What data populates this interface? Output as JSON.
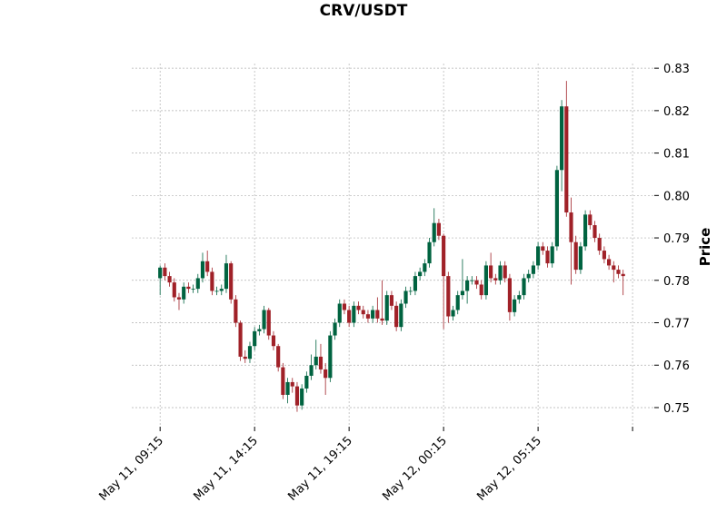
{
  "chart_data": {
    "type": "candlestick",
    "title": "CRV/USDT",
    "y_label": "Price",
    "up_color": "#006340",
    "down_color": "#a02128",
    "grid": true,
    "xlim": [
      -6,
      104.6
    ],
    "xticks": [
      {
        "value": 0,
        "label": "May 11, 09:15"
      },
      {
        "value": 20,
        "label": "May 11, 14:15"
      },
      {
        "value": 40,
        "label": "May 11, 19:15"
      },
      {
        "value": 60,
        "label": "May 12, 00:15"
      },
      {
        "value": 80,
        "label": "May 12, 05:15"
      },
      {
        "value": 100,
        "label": null
      }
    ],
    "ylim": [
      0.7455,
      0.8311
    ],
    "yticks": [
      0.75,
      0.76,
      0.77,
      0.78,
      0.79,
      {
        "value": 0.8,
        "label": "0.80"
      },
      0.81,
      0.82,
      0.83
    ],
    "open": [
      0.7805,
      0.783,
      0.781,
      0.7795,
      0.776,
      0.7755,
      0.7785,
      0.778,
      0.778,
      0.7805,
      0.7845,
      0.782,
      0.7775,
      0.7775,
      0.778,
      0.784,
      0.7755,
      0.77,
      0.762,
      0.7615,
      0.7645,
      0.768,
      0.7685,
      0.773,
      0.767,
      0.7645,
      0.7595,
      0.753,
      0.756,
      0.755,
      0.7505,
      0.7545,
      0.7575,
      0.76,
      0.762,
      0.759,
      0.757,
      0.767,
      0.77,
      0.7745,
      0.773,
      0.77,
      0.774,
      0.773,
      0.772,
      0.771,
      0.773,
      0.771,
      0.7705,
      0.7765,
      0.774,
      0.769,
      0.7745,
      0.7775,
      0.7775,
      0.781,
      0.782,
      0.784,
      0.789,
      0.7935,
      0.7905,
      0.781,
      0.7715,
      0.773,
      0.7765,
      0.7775,
      0.78,
      0.78,
      0.779,
      0.7765,
      0.7835,
      0.7805,
      0.78,
      0.7835,
      0.7805,
      0.7725,
      0.7755,
      0.7765,
      0.7805,
      0.7815,
      0.7835,
      0.788,
      0.787,
      0.784,
      0.788,
      0.806,
      0.821,
      0.796,
      0.789,
      0.7825,
      0.788,
      0.7955,
      0.793,
      0.79,
      0.787,
      0.785,
      0.7835,
      0.7825,
      0.7815
    ],
    "high": [
      0.7835,
      0.784,
      0.782,
      0.7805,
      0.777,
      0.7795,
      0.7795,
      0.779,
      0.7815,
      0.7865,
      0.787,
      0.783,
      0.7785,
      0.779,
      0.786,
      0.7845,
      0.7765,
      0.7705,
      0.7635,
      0.7655,
      0.769,
      0.7695,
      0.774,
      0.7735,
      0.768,
      0.765,
      0.7605,
      0.757,
      0.757,
      0.756,
      0.7555,
      0.7585,
      0.7625,
      0.766,
      0.765,
      0.7605,
      0.768,
      0.771,
      0.7755,
      0.7755,
      0.774,
      0.775,
      0.775,
      0.774,
      0.773,
      0.774,
      0.776,
      0.78,
      0.7775,
      0.7775,
      0.775,
      0.7755,
      0.7785,
      0.7785,
      0.782,
      0.783,
      0.785,
      0.79,
      0.797,
      0.7945,
      0.791,
      0.782,
      0.774,
      0.7775,
      0.785,
      0.781,
      0.781,
      0.781,
      0.78,
      0.7845,
      0.7865,
      0.7815,
      0.7845,
      0.7845,
      0.7815,
      0.7765,
      0.7775,
      0.7815,
      0.7825,
      0.7845,
      0.789,
      0.789,
      0.788,
      0.789,
      0.807,
      0.8225,
      0.827,
      0.7995,
      0.7905,
      0.789,
      0.7965,
      0.7965,
      0.794,
      0.791,
      0.788,
      0.786,
      0.7845,
      0.7835,
      0.7825
    ],
    "low": [
      0.7765,
      0.78,
      0.7785,
      0.775,
      0.773,
      0.7745,
      0.777,
      0.777,
      0.777,
      0.7795,
      0.781,
      0.7765,
      0.7765,
      0.7765,
      0.777,
      0.7745,
      0.769,
      0.761,
      0.7605,
      0.7605,
      0.7635,
      0.767,
      0.7675,
      0.766,
      0.7635,
      0.7585,
      0.752,
      0.751,
      0.7535,
      0.749,
      0.7495,
      0.7535,
      0.7565,
      0.759,
      0.758,
      0.753,
      0.756,
      0.766,
      0.769,
      0.772,
      0.769,
      0.769,
      0.772,
      0.771,
      0.77,
      0.77,
      0.77,
      0.7695,
      0.7695,
      0.773,
      0.768,
      0.768,
      0.7735,
      0.7765,
      0.7765,
      0.78,
      0.781,
      0.783,
      0.788,
      0.7895,
      0.7685,
      0.77,
      0.7705,
      0.772,
      0.7755,
      0.7745,
      0.779,
      0.778,
      0.7755,
      0.7755,
      0.7795,
      0.779,
      0.779,
      0.7795,
      0.7705,
      0.7715,
      0.7745,
      0.7755,
      0.7795,
      0.7805,
      0.7825,
      0.786,
      0.783,
      0.783,
      0.787,
      0.801,
      0.795,
      0.779,
      0.7815,
      0.7815,
      0.787,
      0.792,
      0.789,
      0.786,
      0.784,
      0.7825,
      0.7795,
      0.7805,
      0.7765
    ],
    "close": [
      0.783,
      0.781,
      0.7795,
      0.776,
      0.7755,
      0.7785,
      0.778,
      0.778,
      0.7805,
      0.7845,
      0.782,
      0.7775,
      0.7775,
      0.778,
      0.784,
      0.7755,
      0.77,
      0.762,
      0.7615,
      0.7645,
      0.768,
      0.7685,
      0.773,
      0.767,
      0.7645,
      0.7595,
      0.753,
      0.756,
      0.755,
      0.7505,
      0.7545,
      0.7575,
      0.76,
      0.762,
      0.759,
      0.757,
      0.767,
      0.77,
      0.7745,
      0.773,
      0.77,
      0.774,
      0.773,
      0.772,
      0.771,
      0.773,
      0.771,
      0.7705,
      0.7765,
      0.774,
      0.769,
      0.7745,
      0.7775,
      0.7775,
      0.781,
      0.782,
      0.784,
      0.789,
      0.7935,
      0.7905,
      0.781,
      0.7715,
      0.773,
      0.7765,
      0.7775,
      0.78,
      0.78,
      0.779,
      0.7765,
      0.7835,
      0.7805,
      0.78,
      0.7835,
      0.7805,
      0.7725,
      0.7755,
      0.7765,
      0.7805,
      0.7815,
      0.7835,
      0.788,
      0.787,
      0.784,
      0.788,
      0.806,
      0.821,
      0.796,
      0.789,
      0.7825,
      0.788,
      0.7955,
      0.793,
      0.79,
      0.787,
      0.785,
      0.7835,
      0.7825,
      0.7815,
      0.781
    ]
  }
}
